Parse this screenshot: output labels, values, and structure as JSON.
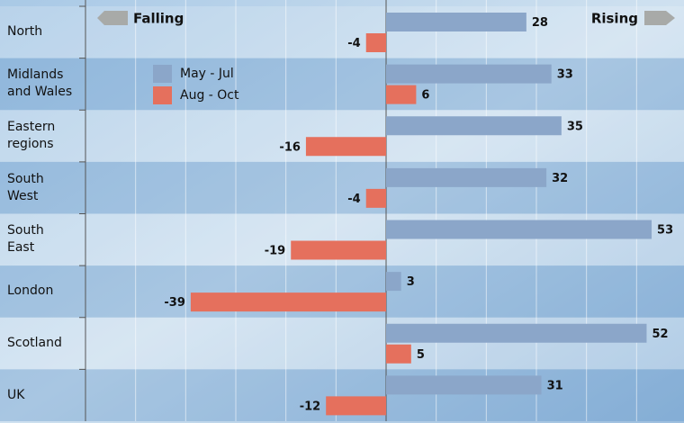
{
  "chart_data": {
    "type": "hbar",
    "annotations": [
      "Falling",
      "Rising"
    ],
    "categories": [
      "North",
      "Midlands\nand Wales",
      "Eastern\nregions",
      "South\nWest",
      "South\nEast",
      "London",
      "Scotland",
      "UK"
    ],
    "series": [
      {
        "name": "May - Jul",
        "color": "#8ba6c9",
        "values": [
          28,
          33,
          35,
          32,
          53,
          3,
          52,
          31
        ]
      },
      {
        "name": "Aug - Oct",
        "color": "#e5705d",
        "values": [
          -4,
          6,
          -16,
          -4,
          -19,
          -39,
          5,
          -12
        ]
      }
    ],
    "xlim": [
      -60,
      60
    ],
    "xticks": [
      -60,
      -50,
      -40,
      -30,
      -20,
      -10,
      0,
      10,
      20,
      30,
      40,
      50
    ],
    "grid": true
  }
}
